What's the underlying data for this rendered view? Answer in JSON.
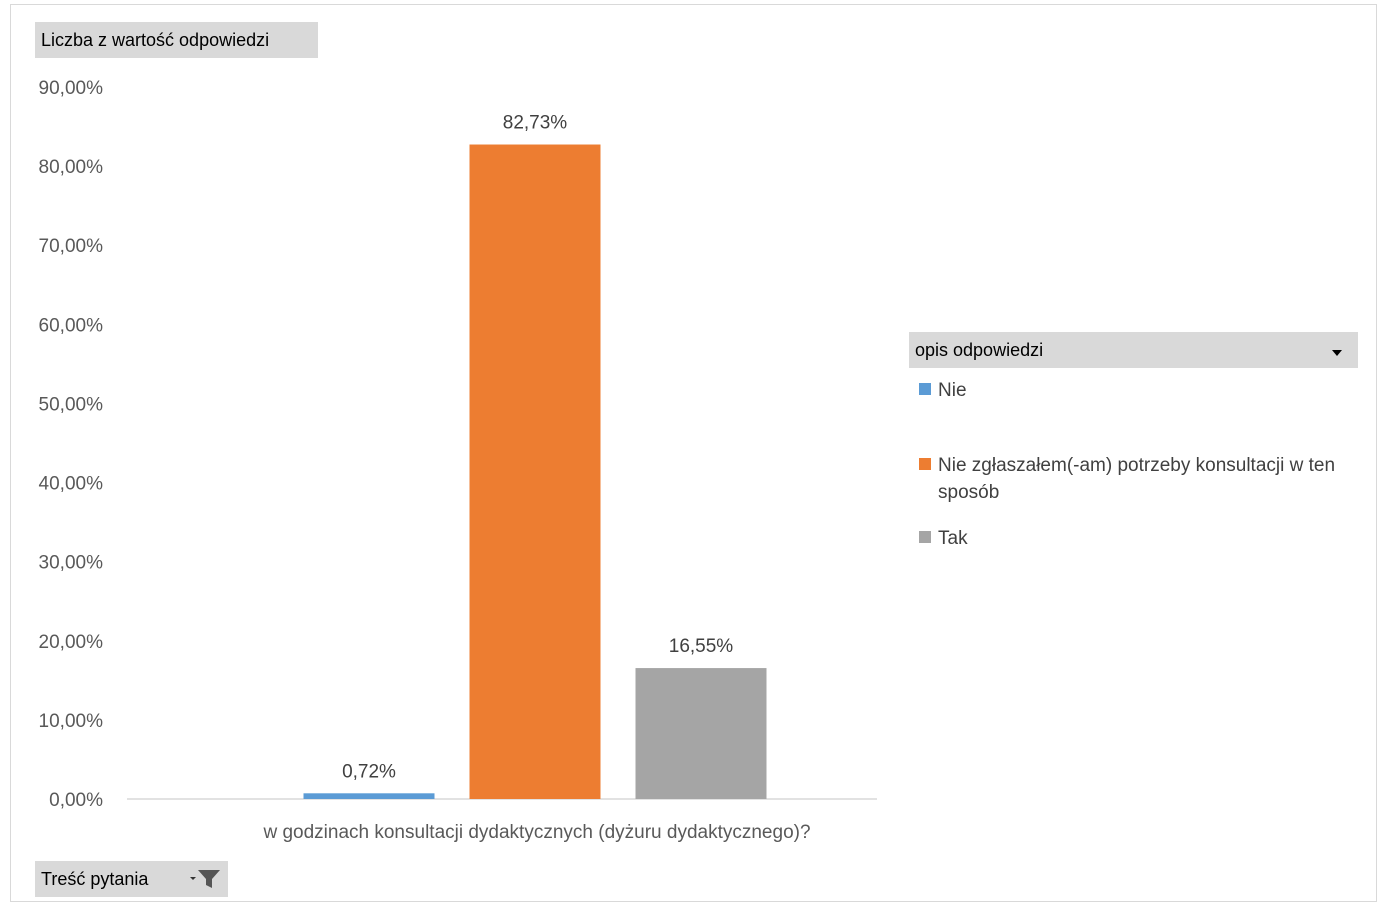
{
  "chart_data": {
    "type": "bar",
    "categories": [
      "w godzinach konsultacji dydaktycznych (dyżuru dydaktycznego)?"
    ],
    "series": [
      {
        "name": "Nie",
        "values": [
          0.72
        ],
        "color": "#5b9bd5",
        "label": "0,72%"
      },
      {
        "name": "Nie zgłaszałem(-am) potrzeby konsultacji w ten sposób",
        "values": [
          82.73
        ],
        "color": "#ed7d31",
        "label": "82,73%"
      },
      {
        "name": "Tak",
        "values": [
          16.55
        ],
        "color": "#a5a5a5",
        "label": "16,55%"
      }
    ],
    "ylim": [
      0,
      90
    ],
    "y_ticks": [
      "0,00%",
      "10,00%",
      "20,00%",
      "30,00%",
      "40,00%",
      "50,00%",
      "60,00%",
      "70,00%",
      "80,00%",
      "90,00%"
    ],
    "grid": false,
    "legend_position": "right"
  },
  "field_buttons": {
    "value_field": "Liczba z wartość odpowiedzi",
    "question_field": "Treść pytania",
    "legend_field": "opis odpowiedzi"
  },
  "legend": [
    "Nie",
    "Nie zgłaszałem(-am) potrzeby konsultacji w ten sposób",
    "Tak"
  ]
}
